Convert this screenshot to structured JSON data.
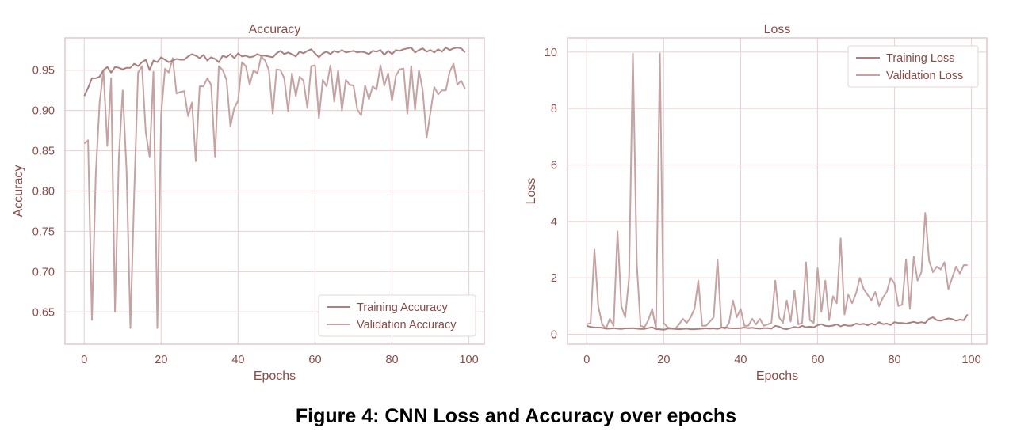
{
  "caption": "Figure 4: CNN Loss and Accuracy over epochs",
  "colors": {
    "training": "#ad7f7f",
    "validation": "#c6a2a2",
    "grid": "#ead6d6",
    "text": "#8a4a45",
    "frame": "#e3c9c9"
  },
  "chart_data": [
    {
      "type": "line",
      "title": "Accuracy",
      "xlabel": "Epochs",
      "ylabel": "Accuracy",
      "xlim": [
        -5,
        104
      ],
      "ylim": [
        0.61,
        0.99
      ],
      "xticks": [
        0,
        20,
        40,
        60,
        80,
        100
      ],
      "yticks": [
        0.65,
        0.7,
        0.75,
        0.8,
        0.85,
        0.9,
        0.95
      ],
      "ytick_labels": [
        "0.65",
        "0.70",
        "0.75",
        "0.80",
        "0.85",
        "0.90",
        "0.95"
      ],
      "grid": true,
      "legend_position": "lower-right",
      "series": [
        {
          "name": "Training Accuracy",
          "color": "#ad7f7f",
          "x": [
            0,
            1,
            2,
            3,
            4,
            5,
            6,
            7,
            8,
            9,
            10,
            11,
            12,
            13,
            14,
            15,
            16,
            17,
            18,
            19,
            20,
            21,
            22,
            23,
            24,
            25,
            26,
            27,
            28,
            29,
            30,
            31,
            32,
            33,
            34,
            35,
            36,
            37,
            38,
            39,
            40,
            41,
            42,
            43,
            44,
            45,
            46,
            47,
            48,
            49,
            50,
            51,
            52,
            53,
            54,
            55,
            56,
            57,
            58,
            59,
            60,
            61,
            62,
            63,
            64,
            65,
            66,
            67,
            68,
            69,
            70,
            71,
            72,
            73,
            74,
            75,
            76,
            77,
            78,
            79,
            80,
            81,
            82,
            83,
            84,
            85,
            86,
            87,
            88,
            89,
            90,
            91,
            92,
            93,
            94,
            95,
            96,
            97,
            98,
            99
          ],
          "y": [
            0.918,
            0.928,
            0.94,
            0.94,
            0.942,
            0.95,
            0.954,
            0.947,
            0.954,
            0.953,
            0.951,
            0.953,
            0.953,
            0.958,
            0.955,
            0.96,
            0.963,
            0.95,
            0.962,
            0.96,
            0.966,
            0.963,
            0.96,
            0.962,
            0.964,
            0.963,
            0.963,
            0.967,
            0.97,
            0.968,
            0.965,
            0.969,
            0.962,
            0.966,
            0.964,
            0.96,
            0.968,
            0.966,
            0.97,
            0.965,
            0.971,
            0.967,
            0.968,
            0.966,
            0.967,
            0.97,
            0.968,
            0.968,
            0.967,
            0.966,
            0.971,
            0.974,
            0.97,
            0.972,
            0.97,
            0.967,
            0.973,
            0.971,
            0.974,
            0.976,
            0.971,
            0.966,
            0.971,
            0.973,
            0.97,
            0.974,
            0.972,
            0.975,
            0.972,
            0.973,
            0.974,
            0.972,
            0.973,
            0.972,
            0.97,
            0.974,
            0.973,
            0.975,
            0.969,
            0.974,
            0.97,
            0.975,
            0.974,
            0.976,
            0.977,
            0.978,
            0.972,
            0.975,
            0.977,
            0.973,
            0.975,
            0.972,
            0.976,
            0.973,
            0.978,
            0.975,
            0.977,
            0.978,
            0.977,
            0.972
          ]
        },
        {
          "name": "Validation Accuracy",
          "color": "#c6a2a2",
          "x": [
            0,
            1,
            2,
            3,
            4,
            5,
            6,
            7,
            8,
            9,
            10,
            11,
            12,
            13,
            14,
            15,
            16,
            17,
            18,
            19,
            20,
            21,
            22,
            23,
            24,
            25,
            26,
            27,
            28,
            29,
            30,
            31,
            32,
            33,
            34,
            35,
            36,
            37,
            38,
            39,
            40,
            41,
            42,
            43,
            44,
            45,
            46,
            47,
            48,
            49,
            50,
            51,
            52,
            53,
            54,
            55,
            56,
            57,
            58,
            59,
            60,
            61,
            62,
            63,
            64,
            65,
            66,
            67,
            68,
            69,
            70,
            71,
            72,
            73,
            74,
            75,
            76,
            77,
            78,
            79,
            80,
            81,
            82,
            83,
            84,
            85,
            86,
            87,
            88,
            89,
            90,
            91,
            92,
            93,
            94,
            95,
            96,
            97,
            98,
            99
          ],
          "y": [
            0.859,
            0.863,
            0.64,
            0.82,
            0.91,
            0.95,
            0.856,
            0.94,
            0.65,
            0.84,
            0.925,
            0.825,
            0.63,
            0.8,
            0.947,
            0.955,
            0.873,
            0.842,
            0.948,
            0.63,
            0.895,
            0.952,
            0.947,
            0.965,
            0.921,
            0.923,
            0.924,
            0.893,
            0.91,
            0.837,
            0.93,
            0.93,
            0.94,
            0.932,
            0.842,
            0.955,
            0.95,
            0.938,
            0.88,
            0.903,
            0.912,
            0.96,
            0.955,
            0.932,
            0.95,
            0.946,
            0.967,
            0.962,
            0.95,
            0.896,
            0.951,
            0.95,
            0.94,
            0.899,
            0.946,
            0.918,
            0.942,
            0.937,
            0.903,
            0.955,
            0.956,
            0.89,
            0.938,
            0.93,
            0.956,
            0.911,
            0.95,
            0.9,
            0.938,
            0.932,
            0.931,
            0.901,
            0.894,
            0.931,
            0.914,
            0.93,
            0.926,
            0.956,
            0.931,
            0.946,
            0.912,
            0.943,
            0.951,
            0.952,
            0.896,
            0.955,
            0.901,
            0.95,
            0.925,
            0.866,
            0.898,
            0.929,
            0.92,
            0.925,
            0.925,
            0.948,
            0.958,
            0.932,
            0.937,
            0.927
          ]
        }
      ]
    },
    {
      "type": "line",
      "title": "Loss",
      "xlabel": "Epochs",
      "ylabel": "Loss",
      "xlim": [
        -5,
        104
      ],
      "ylim": [
        -0.35,
        10.5
      ],
      "xticks": [
        0,
        20,
        40,
        60,
        80,
        100
      ],
      "yticks": [
        0,
        2,
        4,
        6,
        8,
        10
      ],
      "ytick_labels": [
        "0",
        "2",
        "4",
        "6",
        "8",
        "10"
      ],
      "grid": true,
      "legend_position": "top-right",
      "series": [
        {
          "name": "Training Loss",
          "color": "#ad7f7f",
          "x": [
            0,
            1,
            2,
            3,
            4,
            5,
            6,
            7,
            8,
            9,
            10,
            11,
            12,
            13,
            14,
            15,
            16,
            17,
            18,
            19,
            20,
            21,
            22,
            23,
            24,
            25,
            26,
            27,
            28,
            29,
            30,
            31,
            32,
            33,
            34,
            35,
            36,
            37,
            38,
            39,
            40,
            41,
            42,
            43,
            44,
            45,
            46,
            47,
            48,
            49,
            50,
            51,
            52,
            53,
            54,
            55,
            56,
            57,
            58,
            59,
            60,
            61,
            62,
            63,
            64,
            65,
            66,
            67,
            68,
            69,
            70,
            71,
            72,
            73,
            74,
            75,
            76,
            77,
            78,
            79,
            80,
            81,
            82,
            83,
            84,
            85,
            86,
            87,
            88,
            89,
            90,
            91,
            92,
            93,
            94,
            95,
            96,
            97,
            98,
            99
          ],
          "y": [
            0.3,
            0.26,
            0.24,
            0.24,
            0.23,
            0.2,
            0.2,
            0.22,
            0.2,
            0.19,
            0.21,
            0.21,
            0.22,
            0.2,
            0.19,
            0.19,
            0.22,
            0.25,
            0.18,
            0.18,
            0.16,
            0.2,
            0.2,
            0.19,
            0.18,
            0.19,
            0.2,
            0.18,
            0.18,
            0.19,
            0.2,
            0.21,
            0.2,
            0.21,
            0.19,
            0.23,
            0.24,
            0.22,
            0.21,
            0.21,
            0.22,
            0.24,
            0.22,
            0.23,
            0.21,
            0.2,
            0.22,
            0.22,
            0.2,
            0.3,
            0.27,
            0.2,
            0.18,
            0.22,
            0.26,
            0.23,
            0.3,
            0.25,
            0.27,
            0.25,
            0.32,
            0.36,
            0.3,
            0.29,
            0.31,
            0.35,
            0.28,
            0.33,
            0.3,
            0.31,
            0.38,
            0.35,
            0.37,
            0.32,
            0.38,
            0.34,
            0.43,
            0.36,
            0.38,
            0.33,
            0.43,
            0.4,
            0.4,
            0.38,
            0.41,
            0.44,
            0.4,
            0.43,
            0.4,
            0.55,
            0.6,
            0.5,
            0.48,
            0.52,
            0.56,
            0.54,
            0.48,
            0.52,
            0.5,
            0.7
          ]
        },
        {
          "name": "Validation Loss",
          "color": "#c6a2a2",
          "x": [
            0,
            1,
            2,
            3,
            4,
            5,
            6,
            7,
            8,
            9,
            10,
            11,
            12,
            13,
            14,
            15,
            16,
            17,
            18,
            19,
            20,
            21,
            22,
            23,
            24,
            25,
            26,
            27,
            28,
            29,
            30,
            31,
            32,
            33,
            34,
            35,
            36,
            37,
            38,
            39,
            40,
            41,
            42,
            43,
            44,
            45,
            46,
            47,
            48,
            49,
            50,
            51,
            52,
            53,
            54,
            55,
            56,
            57,
            58,
            59,
            60,
            61,
            62,
            63,
            64,
            65,
            66,
            67,
            68,
            69,
            70,
            71,
            72,
            73,
            74,
            75,
            76,
            77,
            78,
            79,
            80,
            81,
            82,
            83,
            84,
            85,
            86,
            87,
            88,
            89,
            90,
            91,
            92,
            93,
            94,
            95,
            96,
            97,
            98,
            99
          ],
          "y": [
            0.35,
            0.4,
            3.0,
            1.0,
            0.35,
            0.2,
            0.55,
            0.3,
            3.65,
            1.0,
            0.6,
            2.0,
            9.95,
            2.5,
            0.3,
            0.25,
            0.5,
            0.9,
            0.2,
            9.95,
            0.4,
            0.25,
            0.2,
            0.2,
            0.35,
            0.55,
            0.4,
            0.6,
            0.9,
            1.9,
            0.3,
            0.3,
            0.45,
            0.6,
            2.65,
            0.25,
            0.2,
            0.4,
            1.2,
            0.6,
            0.9,
            0.3,
            0.3,
            0.55,
            0.35,
            0.55,
            0.3,
            0.35,
            0.4,
            1.9,
            0.6,
            0.4,
            1.2,
            0.45,
            1.55,
            0.35,
            0.4,
            2.55,
            0.5,
            0.4,
            2.35,
            0.8,
            1.9,
            0.5,
            1.35,
            1.1,
            3.4,
            0.7,
            1.4,
            1.1,
            1.45,
            2.0,
            1.6,
            1.4,
            1.2,
            1.5,
            1.0,
            1.3,
            1.5,
            2.0,
            1.8,
            1.0,
            1.05,
            2.65,
            0.9,
            2.75,
            1.9,
            2.2,
            4.3,
            2.6,
            2.2,
            2.4,
            2.3,
            2.55,
            1.6,
            2.0,
            2.4,
            2.15,
            2.45,
            2.45
          ]
        }
      ]
    }
  ]
}
